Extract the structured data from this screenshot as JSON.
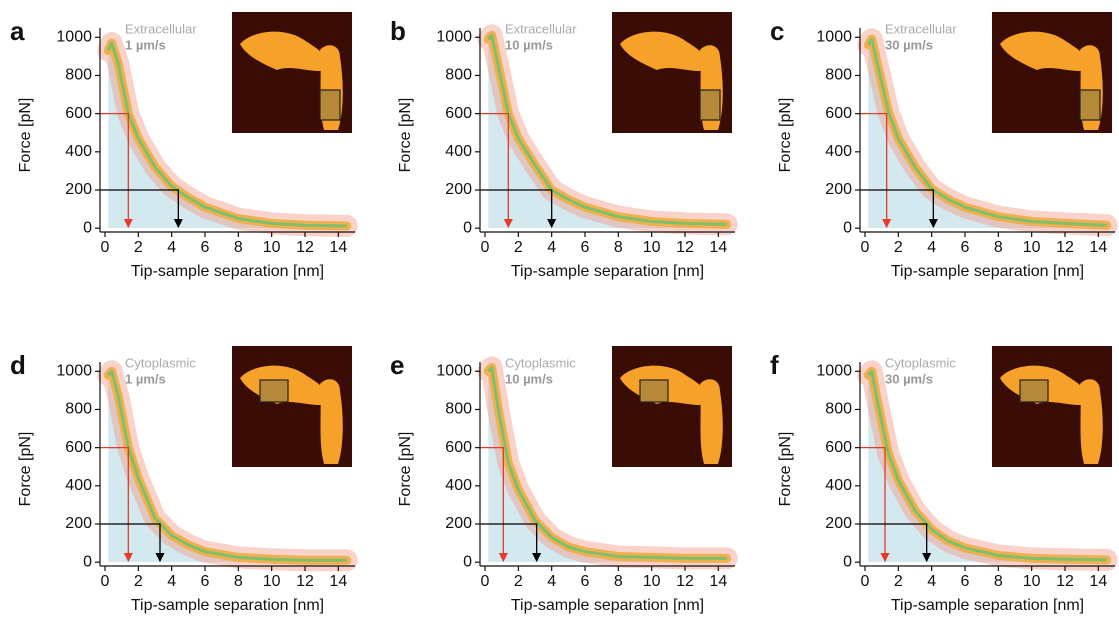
{
  "chart_data": [
    {
      "type": "line",
      "panel_label": "a",
      "title": "Extracellular",
      "subtitle": "1 µm/s",
      "xlabel": "Tip-sample separation [nm]",
      "ylabel": "Force [pN]",
      "x": [
        0.2,
        0.4,
        0.8,
        1.4,
        2,
        3,
        4,
        5,
        6,
        8,
        10,
        12,
        14.5
      ],
      "values": [
        930,
        970,
        860,
        600,
        470,
        320,
        220,
        160,
        110,
        50,
        25,
        15,
        12
      ],
      "xlim": [
        -0.3,
        15
      ],
      "xticks": [
        0,
        2,
        4,
        6,
        8,
        10,
        12,
        14
      ],
      "ylim": [
        -20,
        1080
      ],
      "yticks": [
        0,
        200,
        400,
        600,
        800,
        1000
      ],
      "annotations": [
        {
          "x": 1.4,
          "y": 600,
          "color": "#e63a2a"
        },
        {
          "x": 4.4,
          "y": 200,
          "color": "#000000"
        }
      ]
    },
    {
      "type": "line",
      "panel_label": "b",
      "title": "Extracellular",
      "subtitle": "10 µm/s",
      "xlabel": "Tip-sample separation [nm]",
      "ylabel": "Force [pN]",
      "x": [
        0.2,
        0.4,
        0.8,
        1.4,
        2,
        3,
        4,
        5,
        6,
        8,
        10,
        12,
        14.5
      ],
      "values": [
        990,
        1010,
        850,
        600,
        470,
        330,
        200,
        150,
        110,
        60,
        35,
        25,
        20
      ],
      "xlim": [
        -0.3,
        15
      ],
      "xticks": [
        0,
        2,
        4,
        6,
        8,
        10,
        12,
        14
      ],
      "ylim": [
        -20,
        1080
      ],
      "yticks": [
        0,
        200,
        400,
        600,
        800,
        1000
      ],
      "annotations": [
        {
          "x": 1.4,
          "y": 600,
          "color": "#e63a2a"
        },
        {
          "x": 4.0,
          "y": 200,
          "color": "#000000"
        }
      ]
    },
    {
      "type": "line",
      "panel_label": "c",
      "title": "Extracellular",
      "subtitle": "30 µm/s",
      "xlabel": "Tip-sample separation [nm]",
      "ylabel": "Force [pN]",
      "x": [
        0.2,
        0.4,
        0.8,
        1.4,
        2,
        3,
        4,
        5,
        6,
        8,
        10,
        12,
        14.5
      ],
      "values": [
        960,
        990,
        840,
        610,
        470,
        320,
        205,
        150,
        110,
        60,
        35,
        25,
        15
      ],
      "xlim": [
        -0.3,
        15
      ],
      "xticks": [
        0,
        2,
        4,
        6,
        8,
        10,
        12,
        14
      ],
      "ylim": [
        -20,
        1080
      ],
      "yticks": [
        0,
        200,
        400,
        600,
        800,
        1000
      ],
      "annotations": [
        {
          "x": 1.3,
          "y": 600,
          "color": "#e63a2a"
        },
        {
          "x": 4.1,
          "y": 200,
          "color": "#000000"
        }
      ]
    },
    {
      "type": "line",
      "panel_label": "d",
      "title": "Cytoplasmic",
      "subtitle": "1 µm/s",
      "xlabel": "Tip-sample separation [nm]",
      "ylabel": "Force [pN]",
      "x": [
        0.2,
        0.4,
        0.8,
        1.4,
        2,
        3,
        4,
        5,
        6,
        8,
        10,
        12,
        14.5
      ],
      "values": [
        980,
        1000,
        870,
        600,
        440,
        230,
        140,
        90,
        55,
        25,
        15,
        10,
        10
      ],
      "xlim": [
        -0.3,
        15
      ],
      "xticks": [
        0,
        2,
        4,
        6,
        8,
        10,
        12,
        14
      ],
      "ylim": [
        -20,
        1080
      ],
      "yticks": [
        0,
        200,
        400,
        600,
        800,
        1000
      ],
      "annotations": [
        {
          "x": 1.4,
          "y": 600,
          "color": "#e63a2a"
        },
        {
          "x": 3.3,
          "y": 200,
          "color": "#000000"
        }
      ]
    },
    {
      "type": "line",
      "panel_label": "e",
      "title": "Cytoplasmic",
      "subtitle": "10 µm/s",
      "xlabel": "Tip-sample separation [nm]",
      "ylabel": "Force [pN]",
      "x": [
        0.2,
        0.4,
        0.8,
        1.4,
        2,
        3,
        4,
        5,
        6,
        8,
        10,
        12,
        14.5
      ],
      "values": [
        1000,
        1020,
        800,
        520,
        380,
        220,
        130,
        80,
        55,
        30,
        25,
        20,
        20
      ],
      "xlim": [
        -0.3,
        15
      ],
      "xticks": [
        0,
        2,
        4,
        6,
        8,
        10,
        12,
        14
      ],
      "ylim": [
        -20,
        1080
      ],
      "yticks": [
        0,
        200,
        400,
        600,
        800,
        1000
      ],
      "annotations": [
        {
          "x": 1.1,
          "y": 600,
          "color": "#e63a2a"
        },
        {
          "x": 3.1,
          "y": 200,
          "color": "#000000"
        }
      ]
    },
    {
      "type": "line",
      "panel_label": "f",
      "title": "Cytoplasmic",
      "subtitle": "30 µm/s",
      "xlabel": "Tip-sample separation [nm]",
      "ylabel": "Force [pN]",
      "x": [
        0.2,
        0.4,
        0.8,
        1.4,
        2,
        3,
        4,
        5,
        6,
        8,
        10,
        12,
        14.5
      ],
      "values": [
        980,
        1000,
        820,
        570,
        430,
        270,
        170,
        110,
        75,
        35,
        20,
        15,
        12
      ],
      "xlim": [
        -0.3,
        15
      ],
      "xticks": [
        0,
        2,
        4,
        6,
        8,
        10,
        12,
        14
      ],
      "ylim": [
        -20,
        1080
      ],
      "yticks": [
        0,
        200,
        400,
        600,
        800,
        1000
      ],
      "annotations": [
        {
          "x": 1.2,
          "y": 600,
          "color": "#e63a2a"
        },
        {
          "x": 3.7,
          "y": 200,
          "color": "#000000"
        }
      ]
    }
  ]
}
